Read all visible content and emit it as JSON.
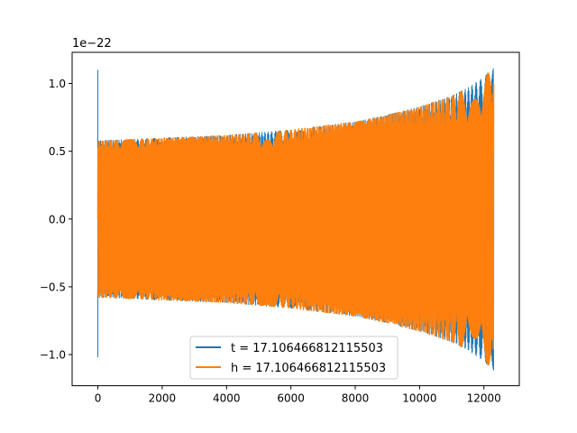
{
  "chart_data": {
    "type": "line",
    "title": "",
    "xlabel": "",
    "ylabel": "",
    "offset_text": "1e−22",
    "xlim": [
      -800,
      13100
    ],
    "ylim": [
      -1.23,
      1.23
    ],
    "xticks": [
      0,
      2000,
      4000,
      6000,
      8000,
      10000,
      12000
    ],
    "xtick_labels": [
      "0",
      "2000",
      "4000",
      "6000",
      "8000",
      "10000",
      "12000"
    ],
    "yticks": [
      -1.0,
      -0.5,
      0.0,
      0.5,
      1.0
    ],
    "ytick_labels": [
      "−1.0",
      "−0.5",
      "0.0",
      "0.5",
      "1.0"
    ],
    "grid": false,
    "legend_position": "lower center",
    "envelope": {
      "x": [
        0,
        1000,
        2000,
        3000,
        4000,
        5000,
        6000,
        7000,
        8000,
        9000,
        10000,
        11000,
        11500,
        12000,
        12300
      ],
      "amplitude": [
        0.58,
        0.59,
        0.6,
        0.61,
        0.62,
        0.64,
        0.66,
        0.69,
        0.72,
        0.77,
        0.83,
        0.91,
        0.97,
        1.05,
        1.12
      ]
    },
    "series": [
      {
        "name": "t = 17.106466812115503",
        "color": "#1f77b4",
        "spike": {
          "x": 0,
          "ymax": 1.1,
          "ymin": -1.02
        }
      },
      {
        "name": "h = 17.106466812115503",
        "color": "#ff7f0e"
      }
    ]
  }
}
